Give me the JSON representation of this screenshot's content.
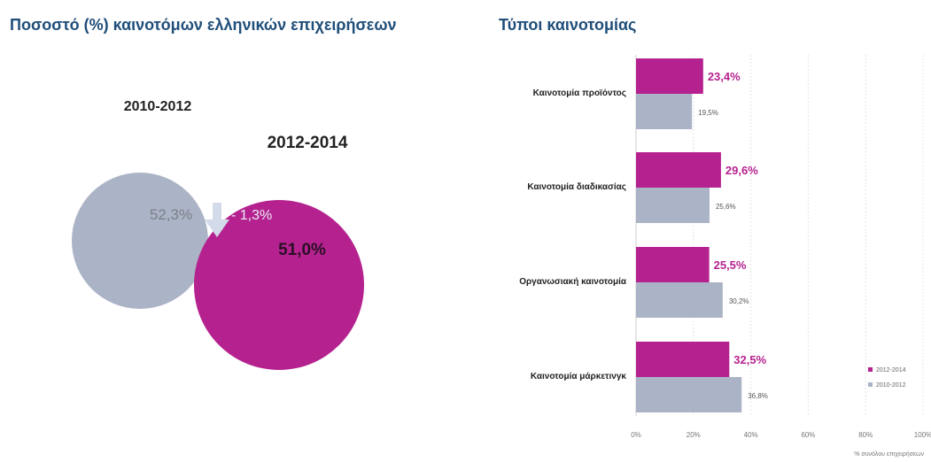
{
  "left_panel": {
    "title": "Ποσοστό (%) καινοτόμων ελληνικών επιχειρήσεων",
    "period_a": "2010-2012",
    "period_b": "2012-2014",
    "value_a": "52,3%",
    "value_b": "51,0%",
    "change": "- 1,3%",
    "colors": {
      "a": "#abb3c6",
      "b": "#b5228f",
      "arrow": "#d3dbea",
      "change_text": "#e9eef7"
    }
  },
  "right_panel": {
    "title": "Τύποι καινοτομίας"
  },
  "chart_data": [
    {
      "type": "pie",
      "title": "Ποσοστό (%) καινοτόμων ελληνικών επιχειρήσεων",
      "categories": [
        "2010-2012",
        "2012-2014"
      ],
      "values": [
        52.3,
        51.0
      ],
      "labels": [
        "52,3%",
        "51,0%"
      ],
      "annotation": "- 1,3%"
    },
    {
      "type": "bar",
      "orientation": "horizontal",
      "title": "Τύποι καινοτομίας",
      "categories": [
        "Καινοτομία προϊόντος",
        "Καινοτομία διαδικασίας",
        "Οργανωσιακή καινοτομία",
        "Καινοτομία μάρκετινγκ"
      ],
      "series": [
        {
          "name": "2012-2014",
          "color": "#b5228f",
          "values": [
            23.4,
            29.6,
            25.5,
            32.5
          ],
          "labels": [
            "23,4%",
            "29,6%",
            "25,5%",
            "32,5%"
          ]
        },
        {
          "name": "2010-2012",
          "color": "#abb3c6",
          "values": [
            19.5,
            25.6,
            30.2,
            36.8
          ],
          "labels": [
            "19,5%",
            "25,6%",
            "30,2%",
            "36,8%"
          ]
        }
      ],
      "xlim": [
        0,
        100
      ],
      "xticks": [
        "0%",
        "20%",
        "40%",
        "60%",
        "80%",
        "100%"
      ],
      "xlabel": "% συνόλου επιχειρήσεων",
      "grid": true,
      "legend": "right"
    }
  ]
}
